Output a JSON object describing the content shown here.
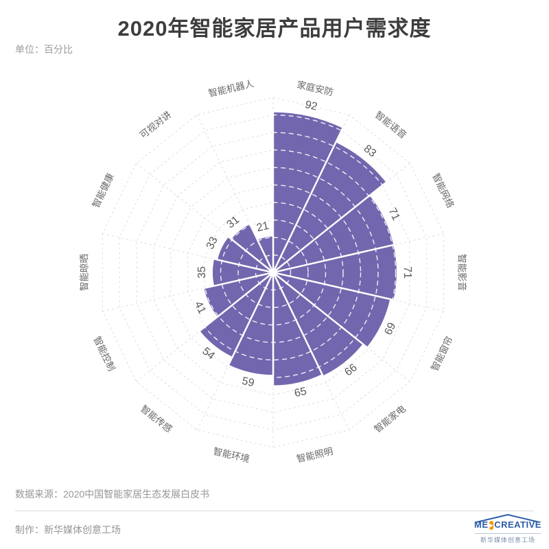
{
  "title": "2020年智能家居产品用户需求度",
  "unit_label": "单位：百分比",
  "chart_data": {
    "type": "bar",
    "subtype": "polar-rose",
    "title": "2020年智能家居产品用户需求度",
    "unit": "百分比",
    "categories": [
      "家庭安防",
      "智能语音",
      "智能网络",
      "智能影音",
      "智能窗帘",
      "智能家电",
      "智能照明",
      "智能环境",
      "智能传感",
      "智能控制",
      "智能晾晒",
      "智能健康",
      "可视对讲",
      "智能机器人"
    ],
    "values": [
      92,
      83,
      71,
      71,
      69,
      66,
      65,
      59,
      54,
      41,
      35,
      33,
      31,
      21
    ],
    "start_angle_deg": 0,
    "clockwise": true,
    "radial_max": 100,
    "ring_step": 10,
    "grid": "on",
    "colors": {
      "sector_fill": "#7267ae",
      "sector_stroke": "#ffffff",
      "grid_line": "#dddde2",
      "inner_ring_dash": "#ffffff",
      "value_label": "#595959",
      "category_label": "#666666"
    }
  },
  "footer": {
    "source": "数据来源：2020中国智能家居生态发展白皮书",
    "producer": "制作：新华媒体创意工场"
  },
  "logo": {
    "text_pre": "ME",
    "play_glyph": "▶",
    "text_post": "CREATIVE",
    "subline": "新华媒体创意工场"
  }
}
